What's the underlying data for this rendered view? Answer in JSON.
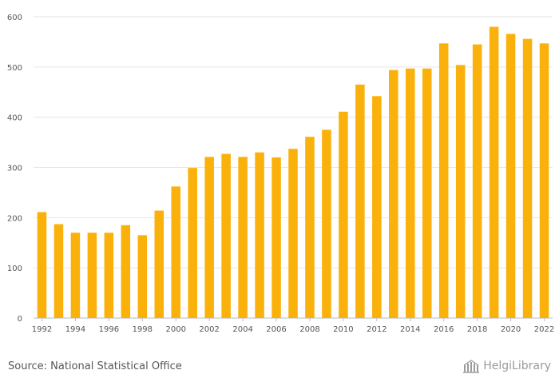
{
  "colors": {
    "bar": "#FBB10B",
    "grid": "#e6e6e6",
    "axis": "#bbbbbb",
    "text": "#555555",
    "logo": "#9a9a9a"
  },
  "source_text": "Source: National Statistical Office",
  "logo_text": "HelgiLibrary",
  "chart_data": {
    "type": "bar",
    "title": "",
    "xlabel": "",
    "ylabel": "",
    "ylim": [
      0,
      600
    ],
    "yticks": [
      0,
      100,
      200,
      300,
      400,
      500,
      600
    ],
    "grid": true,
    "categories": [
      "1992",
      "1993",
      "1994",
      "1995",
      "1996",
      "1997",
      "1998",
      "1999",
      "2000",
      "2001",
      "2002",
      "2003",
      "2004",
      "2005",
      "2006",
      "2007",
      "2008",
      "2009",
      "2010",
      "2011",
      "2012",
      "2013",
      "2014",
      "2015",
      "2016",
      "2017",
      "2018",
      "2019",
      "2020",
      "2021",
      "2022"
    ],
    "xtick_labels": [
      "1992",
      "1994",
      "1996",
      "1998",
      "2000",
      "2002",
      "2004",
      "2006",
      "2008",
      "2010",
      "2012",
      "2014",
      "2016",
      "2018",
      "2020",
      "2022"
    ],
    "values": [
      211,
      187,
      170,
      170,
      170,
      185,
      165,
      214,
      262,
      299,
      321,
      327,
      321,
      330,
      320,
      337,
      361,
      375,
      411,
      465,
      442,
      494,
      497,
      497,
      547,
      504,
      545,
      580,
      566,
      556,
      547
    ]
  }
}
